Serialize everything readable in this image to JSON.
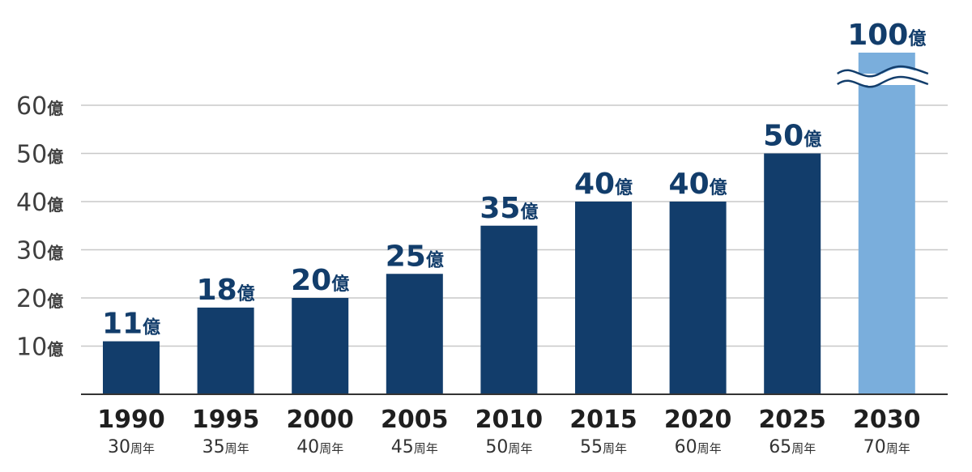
{
  "chart_data": {
    "type": "bar",
    "categories": [
      "1990",
      "1995",
      "2000",
      "2005",
      "2010",
      "2015",
      "2020",
      "2025",
      "2030"
    ],
    "sublabels": [
      "30周年",
      "35周年",
      "40周年",
      "45周年",
      "50周年",
      "55周年",
      "60周年",
      "65周年",
      "70周年"
    ],
    "values": [
      11,
      18,
      20,
      25,
      35,
      40,
      40,
      50,
      100
    ],
    "value_labels": [
      "11億",
      "18億",
      "20億",
      "25億",
      "35億",
      "40億",
      "40億",
      "50億",
      "100億"
    ],
    "unit": "億",
    "yticks": [
      10,
      20,
      30,
      40,
      50,
      60
    ],
    "ytick_labels": [
      "10億",
      "20億",
      "30億",
      "40億",
      "50億",
      "60億"
    ],
    "ylim": [
      0,
      60
    ],
    "axis_break": true,
    "grid": true,
    "colors": {
      "bar": "#123d6b",
      "highlight_bar": "#7aaedc",
      "value_text": "#123d6b",
      "grid": "#c8c8c8",
      "axis": "#333333"
    },
    "highlight_index": 8
  }
}
